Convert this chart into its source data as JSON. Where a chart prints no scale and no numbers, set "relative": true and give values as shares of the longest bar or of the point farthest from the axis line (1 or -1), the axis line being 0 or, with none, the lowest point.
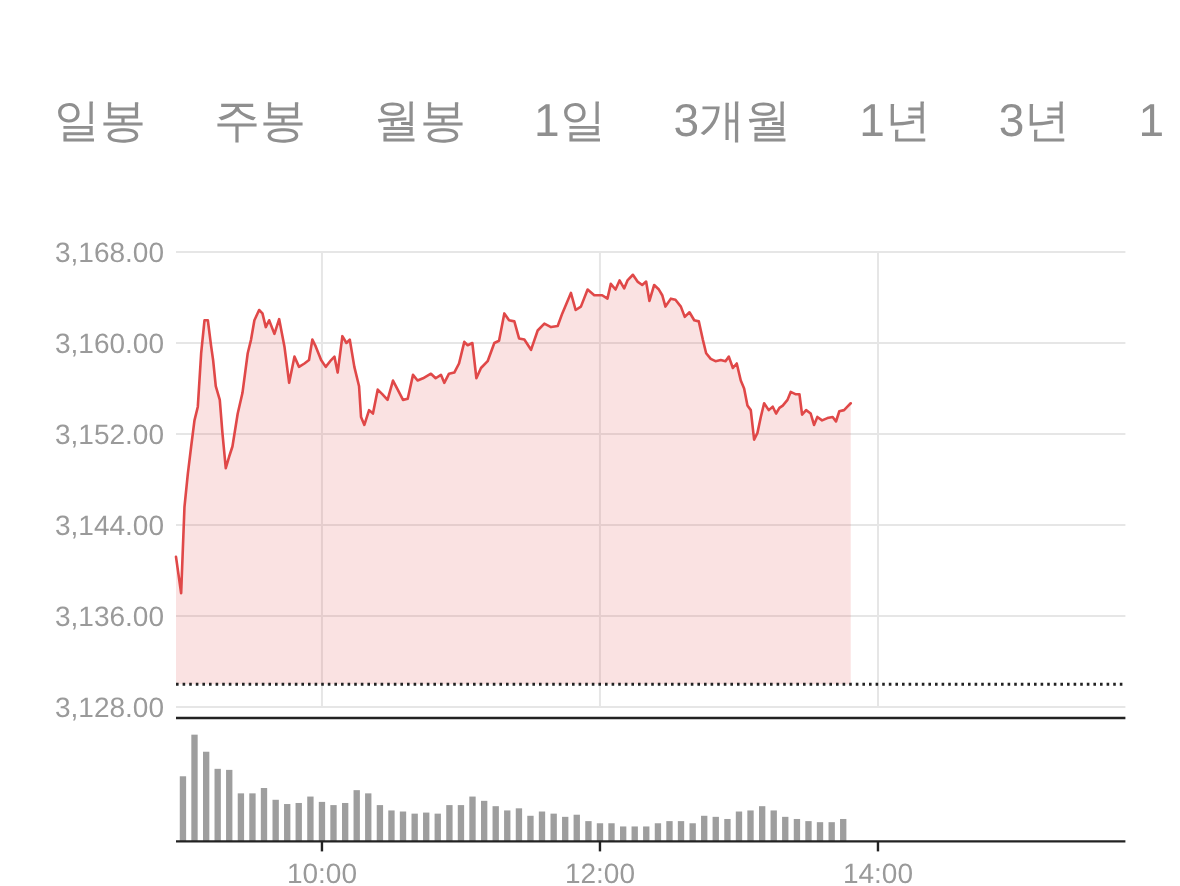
{
  "chart_data": [
    {
      "type": "area",
      "annotations": [
        "일봉",
        "주봉",
        "월봉",
        "1일",
        "3개월",
        "1년",
        "3년",
        "1"
      ],
      "color": "#e04848",
      "x": [
        8.95,
        8.987,
        9.011,
        9.035,
        9.059,
        9.083,
        9.107,
        9.131,
        9.155,
        9.179,
        9.203,
        9.217,
        9.236,
        9.265,
        9.284,
        9.308,
        9.332,
        9.356,
        9.394,
        9.428,
        9.466,
        9.49,
        9.514,
        9.548,
        9.572,
        9.596,
        9.62,
        9.658,
        9.692,
        9.73,
        9.764,
        9.802,
        9.835,
        9.874,
        9.907,
        9.931,
        9.955,
        9.994,
        10.027,
        10.066,
        10.09,
        10.113,
        10.147,
        10.176,
        10.2,
        10.233,
        10.267,
        10.281,
        10.305,
        10.339,
        10.367,
        10.401,
        10.434,
        10.472,
        10.511,
        10.545,
        10.583,
        10.617,
        10.655,
        10.688,
        10.727,
        10.784,
        10.818,
        10.856,
        10.88,
        10.914,
        10.952,
        10.986,
        11.024,
        11.048,
        11.082,
        11.111,
        11.144,
        11.192,
        11.24,
        11.274,
        11.312,
        11.346,
        11.384,
        11.418,
        11.456,
        11.504,
        11.552,
        11.6,
        11.648,
        11.696,
        11.729,
        11.791,
        11.825,
        11.863,
        11.911,
        11.959,
        12.016,
        12.054,
        12.078,
        12.112,
        12.141,
        12.174,
        12.198,
        12.237,
        12.27,
        12.304,
        12.332,
        12.356,
        12.39,
        12.424,
        12.448,
        12.471,
        12.51,
        12.543,
        12.582,
        12.61,
        12.644,
        12.678,
        12.711,
        12.74,
        12.764,
        12.797,
        12.831,
        12.869,
        12.903,
        12.927,
        12.956,
        12.984,
        13.013,
        13.037,
        13.061,
        13.085,
        13.109,
        13.133,
        13.157,
        13.181,
        13.214,
        13.243,
        13.267,
        13.291,
        13.315,
        13.349,
        13.372,
        13.406,
        13.435,
        13.454,
        13.483,
        13.516,
        13.54,
        13.564,
        13.598,
        13.636,
        13.674,
        13.698,
        13.722,
        13.756,
        13.78,
        13.804
      ],
      "values": [
        3141.2,
        3138.0,
        3145.6,
        3148.5,
        3150.9,
        3153.2,
        3154.4,
        3159.1,
        3162.0,
        3162.0,
        3159.7,
        3158.5,
        3156.2,
        3155.0,
        3152.1,
        3149.0,
        3150.0,
        3150.9,
        3153.8,
        3155.6,
        3159.1,
        3160.3,
        3162.0,
        3162.9,
        3162.6,
        3161.4,
        3162.0,
        3160.8,
        3162.1,
        3159.7,
        3156.5,
        3158.8,
        3157.9,
        3158.2,
        3158.5,
        3160.3,
        3159.7,
        3158.5,
        3157.9,
        3158.5,
        3158.8,
        3157.4,
        3160.6,
        3160.0,
        3160.3,
        3157.9,
        3156.2,
        3153.5,
        3152.8,
        3154.1,
        3153.8,
        3155.9,
        3155.5,
        3155.0,
        3156.7,
        3155.9,
        3155.0,
        3155.1,
        3157.2,
        3156.7,
        3156.9,
        3157.3,
        3156.9,
        3157.2,
        3156.5,
        3157.3,
        3157.4,
        3158.2,
        3160.1,
        3159.8,
        3160.0,
        3156.9,
        3157.8,
        3158.4,
        3160.0,
        3160.2,
        3162.6,
        3162.0,
        3161.9,
        3160.4,
        3160.3,
        3159.4,
        3161.1,
        3161.7,
        3161.4,
        3161.5,
        3162.6,
        3164.4,
        3162.9,
        3163.2,
        3164.7,
        3164.2,
        3164.2,
        3163.9,
        3165.2,
        3164.7,
        3165.5,
        3164.8,
        3165.5,
        3166.0,
        3165.4,
        3165.1,
        3165.4,
        3163.7,
        3165.1,
        3164.7,
        3164.2,
        3163.2,
        3163.9,
        3163.8,
        3163.2,
        3162.3,
        3162.7,
        3162.0,
        3161.9,
        3160.3,
        3159.1,
        3158.6,
        3158.4,
        3158.5,
        3158.4,
        3158.8,
        3157.8,
        3158.2,
        3156.7,
        3156.0,
        3154.5,
        3154.1,
        3151.5,
        3152.1,
        3153.5,
        3154.7,
        3154.1,
        3154.4,
        3153.8,
        3154.3,
        3154.5,
        3155.0,
        3155.7,
        3155.5,
        3155.5,
        3153.7,
        3154.1,
        3153.8,
        3152.8,
        3153.5,
        3153.2,
        3153.4,
        3153.5,
        3153.1,
        3154.0,
        3154.1,
        3154.4,
        3154.7
      ],
      "xlim": [
        8.95,
        15.78
      ],
      "xticks": [
        10,
        12,
        14
      ],
      "ylim": [
        3128,
        3168
      ],
      "yticks": [
        {
          "value": 3128,
          "label": "3,128.00"
        },
        {
          "value": 3136,
          "label": "3,136.00"
        },
        {
          "value": 3144,
          "label": "3,144.00"
        },
        {
          "value": 3152,
          "label": "3,152.00"
        },
        {
          "value": 3160,
          "label": "3,160.00"
        },
        {
          "value": 3168,
          "label": "3,168.00"
        }
      ],
      "grid": true,
      "tick_labels": "y",
      "ref_lines": [
        {
          "axis": "y",
          "value": 3130,
          "color": "#222222",
          "line_style": "dotted"
        }
      ]
    },
    {
      "type": "bar",
      "relative": true,
      "color": "#9e9e9e",
      "tick_labels": "x",
      "x": [
        9,
        9.083,
        9.167,
        9.25,
        9.333,
        9.417,
        9.5,
        9.583,
        9.667,
        9.75,
        9.833,
        9.917,
        10,
        10.083,
        10.167,
        10.25,
        10.333,
        10.417,
        10.5,
        10.583,
        10.667,
        10.75,
        10.833,
        10.917,
        11,
        11.083,
        11.167,
        11.25,
        11.333,
        11.417,
        11.5,
        11.583,
        11.667,
        11.75,
        11.833,
        11.917,
        12,
        12.083,
        12.167,
        12.25,
        12.333,
        12.417,
        12.5,
        12.583,
        12.667,
        12.75,
        12.833,
        12.917,
        13,
        13.083,
        13.167,
        13.25,
        13.333,
        13.417,
        13.5,
        13.583,
        13.667,
        13.75
      ],
      "values": [
        0.61,
        1,
        0.84,
        0.68,
        0.67,
        0.45,
        0.45,
        0.5,
        0.39,
        0.35,
        0.36,
        0.42,
        0.37,
        0.34,
        0.36,
        0.48,
        0.45,
        0.34,
        0.29,
        0.28,
        0.26,
        0.27,
        0.26,
        0.34,
        0.34,
        0.42,
        0.38,
        0.33,
        0.29,
        0.31,
        0.24,
        0.28,
        0.26,
        0.23,
        0.25,
        0.19,
        0.17,
        0.17,
        0.14,
        0.14,
        0.14,
        0.17,
        0.19,
        0.19,
        0.17,
        0.24,
        0.23,
        0.21,
        0.28,
        0.29,
        0.33,
        0.29,
        0.23,
        0.21,
        0.19,
        0.18,
        0.18,
        0.21
      ],
      "xlim": [
        8.95,
        15.78
      ],
      "xticks": [
        {
          "value": 10,
          "label": "10:00"
        },
        {
          "value": 12,
          "label": "12:00"
        },
        {
          "value": 14,
          "label": "14:00"
        }
      ]
    }
  ]
}
